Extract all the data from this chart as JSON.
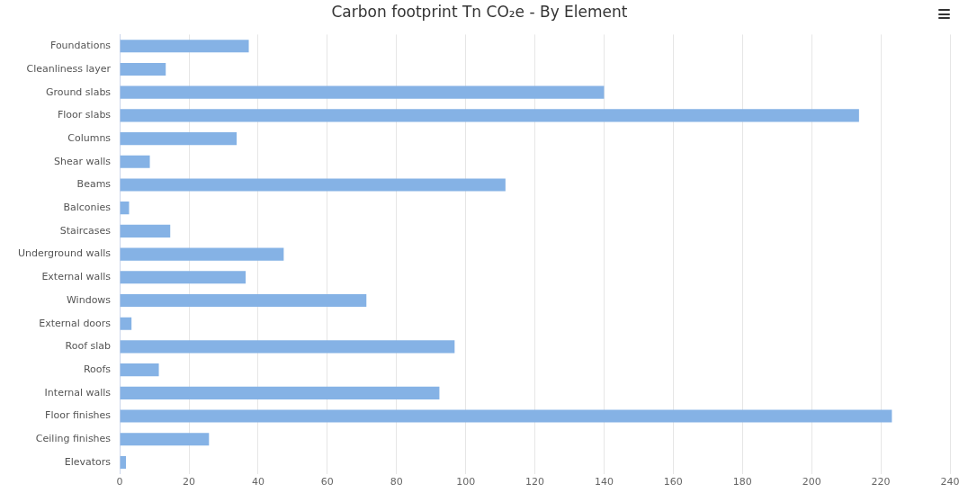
{
  "chart_data": {
    "type": "bar",
    "orientation": "horizontal",
    "title": "Carbon footprint Tn CO₂e - By Element",
    "categories": [
      "Foundations",
      "Cleanliness layer",
      "Ground slabs",
      "Floor slabs",
      "Columns",
      "Shear walls",
      "Beams",
      "Balconies",
      "Staircases",
      "Underground walls",
      "External walls",
      "Windows",
      "External doors",
      "Roof slab",
      "Roofs",
      "Internal walls",
      "Floor finishes",
      "Ceiling finishes",
      "Elevators"
    ],
    "values": [
      37.3,
      13.3,
      140,
      213.7,
      33.8,
      8.7,
      111.5,
      2.7,
      14.6,
      47.4,
      36.4,
      71.3,
      3.4,
      96.8,
      11.3,
      92.4,
      223.2,
      25.8,
      1.8
    ],
    "color": "#85b2e5",
    "xlim": [
      0,
      240
    ],
    "xticks": [
      0,
      20,
      40,
      60,
      80,
      100,
      120,
      140,
      160,
      180,
      200,
      220,
      240
    ],
    "grid": "x",
    "legend": false
  }
}
